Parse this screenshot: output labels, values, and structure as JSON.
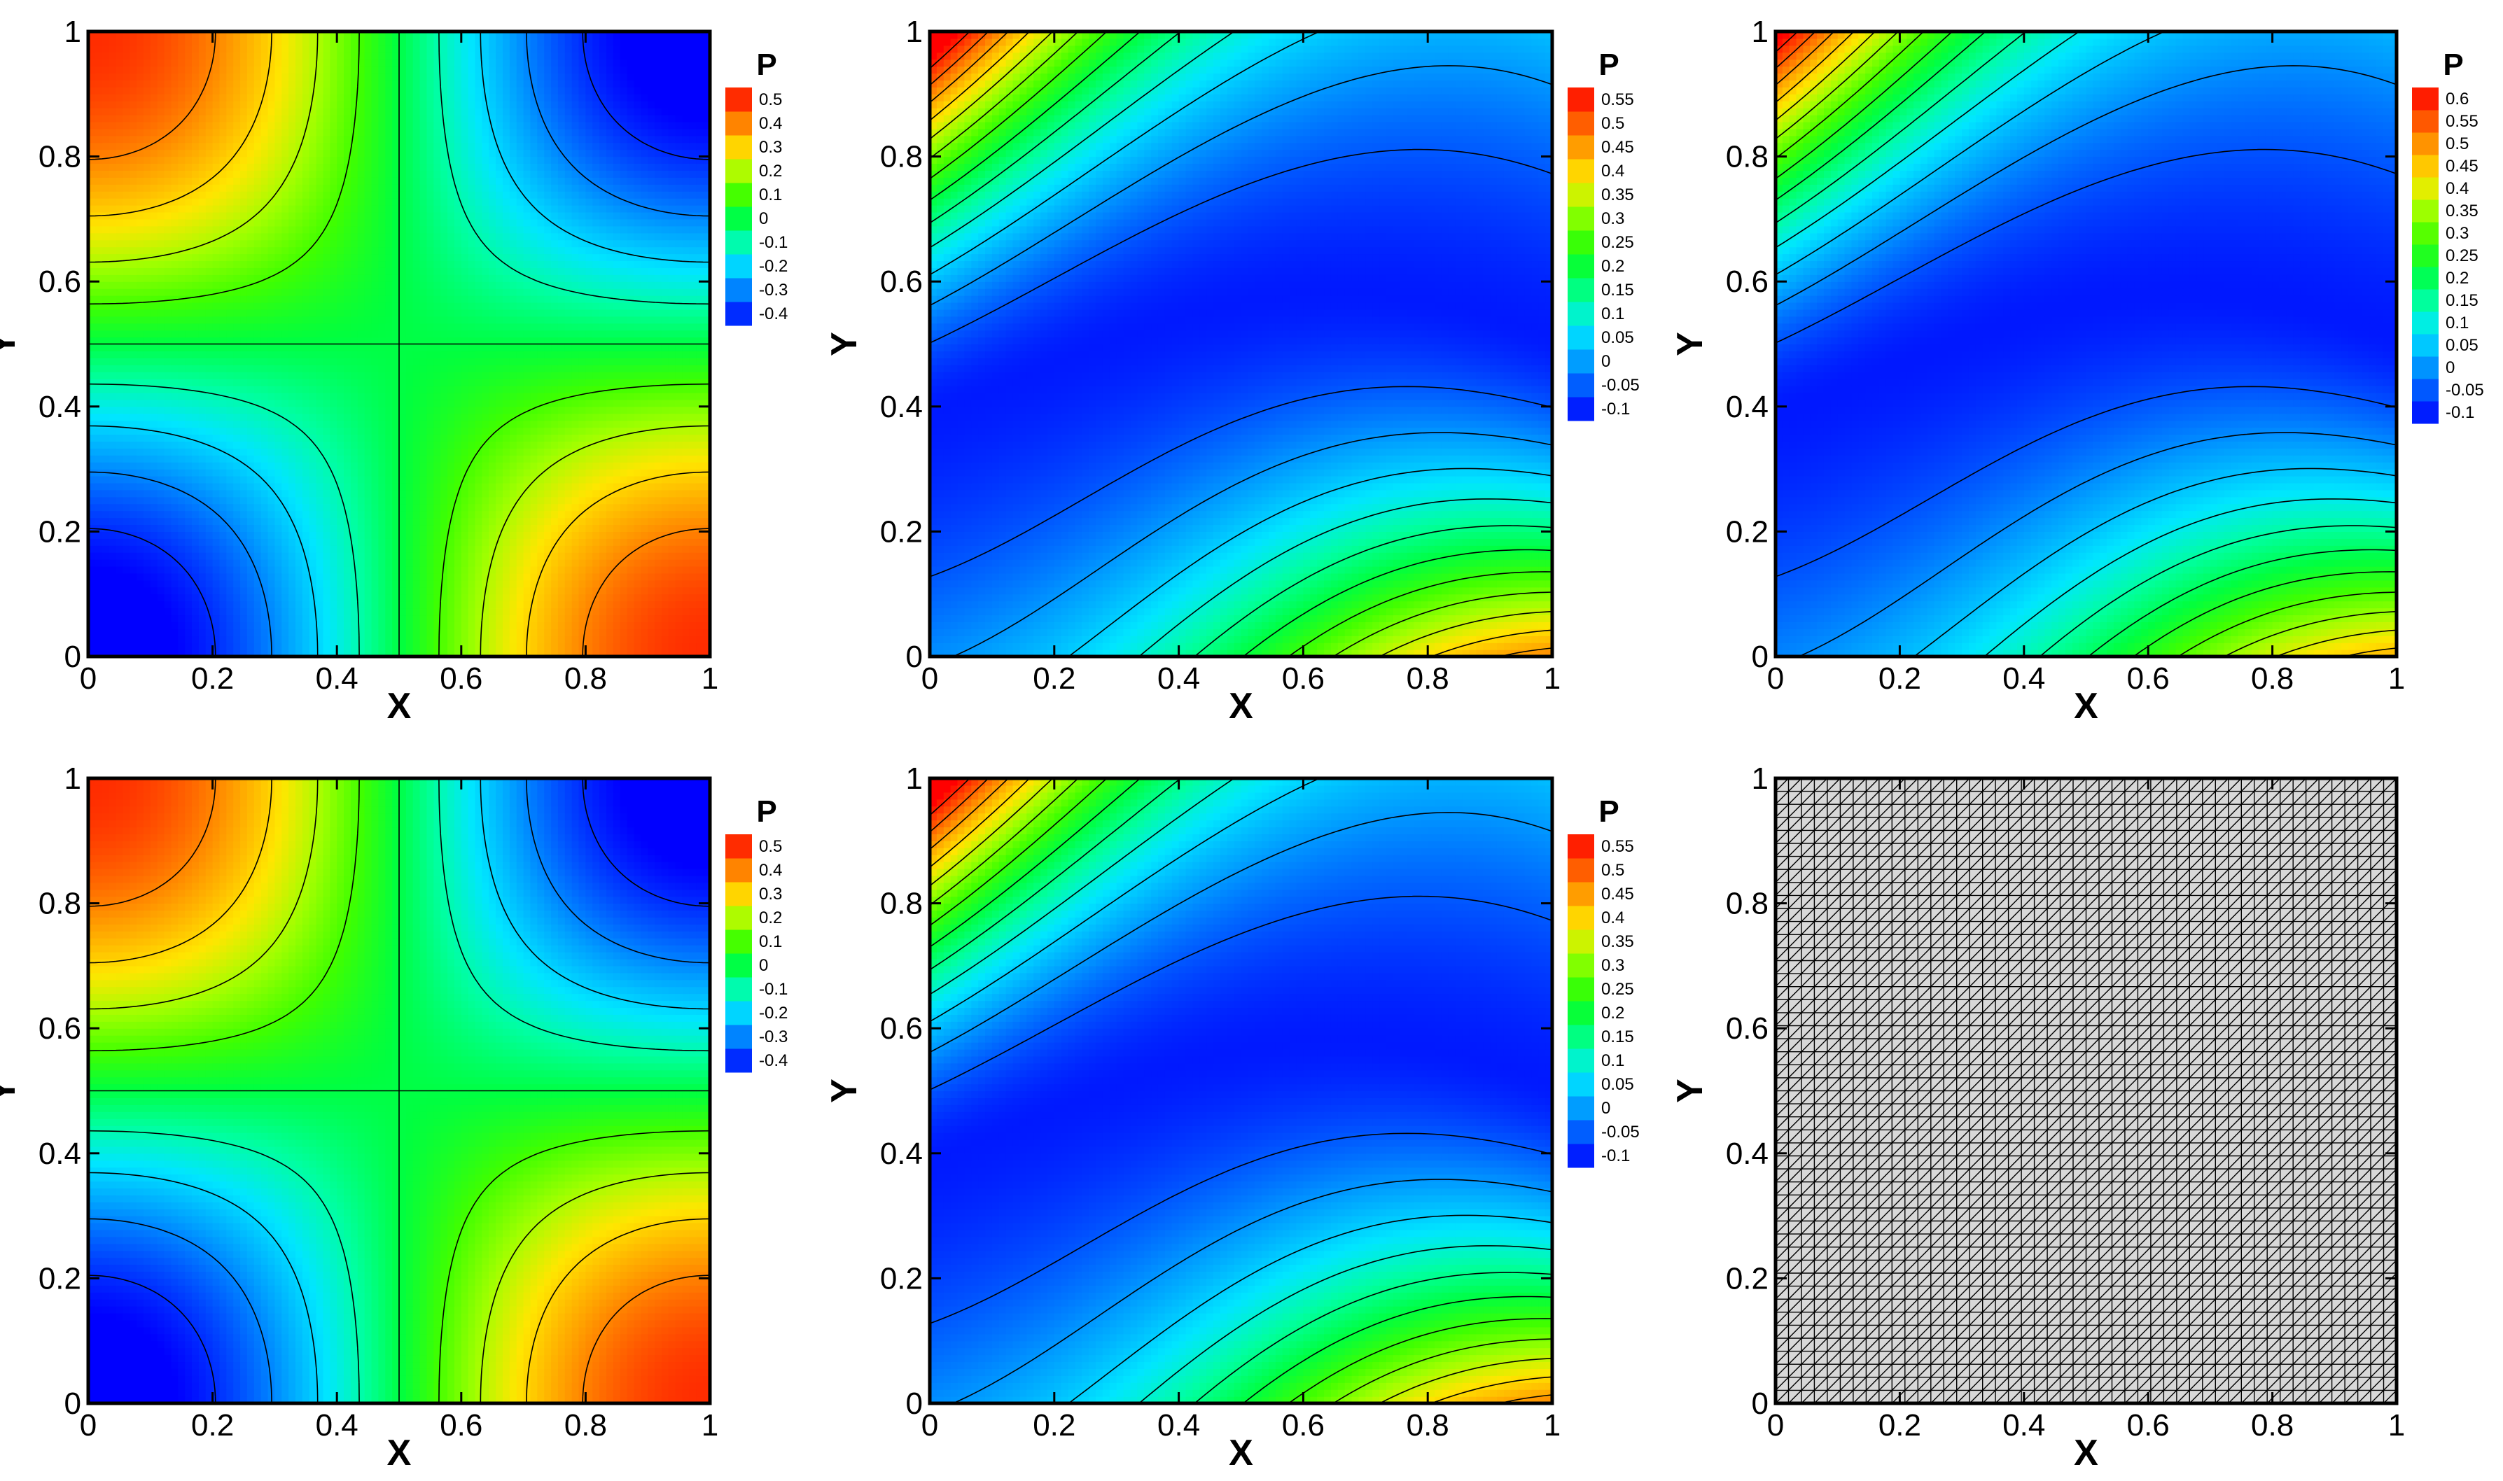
{
  "colormap": [
    "#0000ff",
    "#0050ff",
    "#00a0ff",
    "#00e6ff",
    "#00ffa0",
    "#00ff40",
    "#40ff00",
    "#a0ff00",
    "#ffe600",
    "#ffa000",
    "#ff5000",
    "#ff0000"
  ],
  "mesh_colors": {
    "fill": "#d8d8d8",
    "line": "#000000"
  },
  "chart_data": [
    {
      "type": "contour",
      "panel": "top-left",
      "title": "",
      "variable": "P",
      "xlabel": "X",
      "ylabel": "Y",
      "xlim": [
        0,
        1
      ],
      "ylim": [
        0,
        1
      ],
      "x_ticks": [
        "0",
        "0.2",
        "0.4",
        "0.6",
        "0.8",
        "1"
      ],
      "y_ticks": [
        "0",
        "0.2",
        "0.4",
        "0.6",
        "0.8",
        "1"
      ],
      "levels": [
        -0.4,
        -0.3,
        -0.2,
        -0.1,
        0,
        0.1,
        0.2,
        0.3,
        0.4,
        0.5
      ],
      "level_labels": [
        "-0.4",
        "-0.3",
        "-0.2",
        "-0.1",
        "0",
        "0.1",
        "0.2",
        "0.3",
        "0.4",
        "0.5"
      ],
      "field": "saddle",
      "vmin": -0.45,
      "vmax": 0.55
    },
    {
      "type": "contour",
      "panel": "top-middle",
      "title": "",
      "variable": "P",
      "xlabel": "X",
      "ylabel": "Y",
      "xlim": [
        0,
        1
      ],
      "ylim": [
        0,
        1
      ],
      "x_ticks": [
        "0",
        "0.2",
        "0.4",
        "0.6",
        "0.8",
        "1"
      ],
      "y_ticks": [
        "0",
        "0.2",
        "0.4",
        "0.6",
        "0.8",
        "1"
      ],
      "levels": [
        -0.1,
        -0.05,
        0,
        0.05,
        0.1,
        0.15,
        0.2,
        0.25,
        0.3,
        0.35,
        0.4,
        0.45,
        0.5,
        0.55
      ],
      "level_labels": [
        "-0.1",
        "-0.05",
        "0",
        "0.05",
        "0.1",
        "0.15",
        "0.2",
        "0.25",
        "0.3",
        "0.35",
        "0.4",
        "0.45",
        "0.5",
        "0.55"
      ],
      "field": "band",
      "vmin": -0.12,
      "vmax": 0.58
    },
    {
      "type": "contour",
      "panel": "top-right",
      "title": "",
      "variable": "P",
      "xlabel": "X",
      "ylabel": "Y",
      "xlim": [
        0,
        1
      ],
      "ylim": [
        0,
        1
      ],
      "x_ticks": [
        "0",
        "0.2",
        "0.4",
        "0.6",
        "0.8",
        "1"
      ],
      "y_ticks": [
        "0",
        "0.2",
        "0.4",
        "0.6",
        "0.8",
        "1"
      ],
      "levels": [
        -0.1,
        -0.05,
        0,
        0.05,
        0.1,
        0.15,
        0.2,
        0.25,
        0.3,
        0.35,
        0.4,
        0.45,
        0.5,
        0.55,
        0.6
      ],
      "level_labels": [
        "-0.1",
        "-0.05",
        "0",
        "0.05",
        "0.1",
        "0.15",
        "0.2",
        "0.25",
        "0.3",
        "0.35",
        "0.4",
        "0.45",
        "0.5",
        "0.55",
        "0.6"
      ],
      "field": "band",
      "vmin": -0.12,
      "vmax": 0.63
    },
    {
      "type": "contour",
      "panel": "bottom-left",
      "title": "",
      "variable": "P",
      "xlabel": "X",
      "ylabel": "Y",
      "xlim": [
        0,
        1
      ],
      "ylim": [
        0,
        1
      ],
      "x_ticks": [
        "0",
        "0.2",
        "0.4",
        "0.6",
        "0.8",
        "1"
      ],
      "y_ticks": [
        "0",
        "0.2",
        "0.4",
        "0.6",
        "0.8",
        "1"
      ],
      "levels": [
        -0.4,
        -0.3,
        -0.2,
        -0.1,
        0,
        0.1,
        0.2,
        0.3,
        0.4,
        0.5
      ],
      "level_labels": [
        "-0.4",
        "-0.3",
        "-0.2",
        "-0.1",
        "0",
        "0.1",
        "0.2",
        "0.3",
        "0.4",
        "0.5"
      ],
      "field": "saddle",
      "vmin": -0.45,
      "vmax": 0.55
    },
    {
      "type": "contour",
      "panel": "bottom-middle",
      "title": "",
      "variable": "P",
      "xlabel": "X",
      "ylabel": "Y",
      "xlim": [
        0,
        1
      ],
      "ylim": [
        0,
        1
      ],
      "x_ticks": [
        "0",
        "0.2",
        "0.4",
        "0.6",
        "0.8",
        "1"
      ],
      "y_ticks": [
        "0",
        "0.2",
        "0.4",
        "0.6",
        "0.8",
        "1"
      ],
      "levels": [
        -0.1,
        -0.05,
        0,
        0.05,
        0.1,
        0.15,
        0.2,
        0.25,
        0.3,
        0.35,
        0.4,
        0.45,
        0.5,
        0.55
      ],
      "level_labels": [
        "-0.1",
        "-0.05",
        "0",
        "0.05",
        "0.1",
        "0.15",
        "0.2",
        "0.25",
        "0.3",
        "0.35",
        "0.4",
        "0.45",
        "0.5",
        "0.55"
      ],
      "field": "band",
      "vmin": -0.12,
      "vmax": 0.58
    },
    {
      "type": "mesh",
      "panel": "bottom-right",
      "title": "",
      "xlabel": "X",
      "ylabel": "Y",
      "xlim": [
        0,
        1
      ],
      "ylim": [
        0,
        1
      ],
      "x_ticks": [
        "0",
        "0.2",
        "0.4",
        "0.6",
        "0.8",
        "1"
      ],
      "y_ticks": [
        "0",
        "0.2",
        "0.4",
        "0.6",
        "0.8",
        "1"
      ],
      "mesh_divisions": 48,
      "element": "triangle"
    }
  ]
}
